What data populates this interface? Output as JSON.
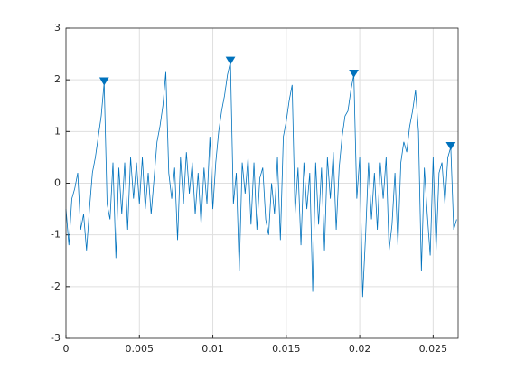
{
  "chart_data": {
    "type": "line",
    "x": [
      0,
      0.0002,
      0.0004,
      0.0006,
      0.0008,
      0.001,
      0.0012,
      0.0014,
      0.0016,
      0.0018,
      0.002,
      0.0022,
      0.0024,
      0.0026,
      0.0028,
      0.003,
      0.0032,
      0.0034,
      0.0036,
      0.0038,
      0.004,
      0.0042,
      0.0044,
      0.0046,
      0.0048,
      0.005,
      0.0052,
      0.0054,
      0.0056,
      0.0058,
      0.006,
      0.0062,
      0.0064,
      0.0066,
      0.0068,
      0.007,
      0.0072,
      0.0074,
      0.0076,
      0.0078,
      0.008,
      0.0082,
      0.0084,
      0.0086,
      0.0088,
      0.009,
      0.0092,
      0.0094,
      0.0096,
      0.0098,
      0.01,
      0.0102,
      0.0104,
      0.0106,
      0.0108,
      0.011,
      0.0112,
      0.0114,
      0.0116,
      0.0118,
      0.012,
      0.0122,
      0.0124,
      0.0126,
      0.0128,
      0.013,
      0.0132,
      0.0134,
      0.0136,
      0.0138,
      0.014,
      0.0142,
      0.0144,
      0.0146,
      0.0148,
      0.015,
      0.0152,
      0.0154,
      0.0156,
      0.0158,
      0.016,
      0.0162,
      0.0164,
      0.0166,
      0.0168,
      0.017,
      0.0172,
      0.0174,
      0.0176,
      0.0178,
      0.018,
      0.0182,
      0.0184,
      0.0186,
      0.0188,
      0.019,
      0.0192,
      0.0194,
      0.0196,
      0.0198,
      0.02,
      0.0202,
      0.0204,
      0.0206,
      0.0208,
      0.021,
      0.0212,
      0.0214,
      0.0216,
      0.0218,
      0.022,
      0.0222,
      0.0224,
      0.0226,
      0.0228,
      0.023,
      0.0232,
      0.0234,
      0.0236,
      0.0238,
      0.024,
      0.0242,
      0.0244,
      0.0246,
      0.0248,
      0.025,
      0.0252,
      0.0254,
      0.0256,
      0.0258,
      0.026,
      0.0262,
      0.0264,
      0.0266
    ],
    "series": [
      {
        "color": "#0072bd",
        "values": [
          -0.5,
          -1.2,
          -0.3,
          -0.1,
          0.2,
          -0.9,
          -0.6,
          -1.3,
          -0.5,
          0.2,
          0.5,
          0.9,
          1.3,
          1.95,
          -0.4,
          -0.7,
          0.4,
          -1.45,
          0.3,
          -0.6,
          0.4,
          -0.9,
          0.5,
          -0.3,
          0.4,
          -0.4,
          0.5,
          -0.5,
          0.2,
          -0.6,
          0.1,
          0.8,
          1.1,
          1.5,
          2.15,
          0.2,
          -0.3,
          0.3,
          -1.1,
          0.5,
          -0.4,
          0.6,
          -0.2,
          0.4,
          -0.6,
          0.2,
          -0.8,
          0.3,
          -0.4,
          0.9,
          -0.5,
          0.4,
          1.0,
          1.4,
          1.7,
          2.1,
          2.35,
          -0.4,
          0.2,
          -1.7,
          0.4,
          -0.2,
          0.5,
          -0.8,
          0.4,
          -0.9,
          0.1,
          0.3,
          -0.7,
          -1.0,
          0.0,
          -0.6,
          0.5,
          -1.1,
          0.9,
          1.2,
          1.6,
          1.9,
          -0.6,
          0.3,
          -1.2,
          0.4,
          -0.5,
          0.2,
          -2.1,
          0.4,
          -0.8,
          0.3,
          -1.3,
          0.5,
          -0.3,
          0.6,
          -0.9,
          0.3,
          0.9,
          1.3,
          1.4,
          1.8,
          2.1,
          -0.3,
          0.5,
          -2.2,
          -1.0,
          0.4,
          -0.7,
          0.2,
          -0.9,
          0.4,
          -0.3,
          0.5,
          -1.3,
          -0.8,
          0.2,
          -1.2,
          0.4,
          0.8,
          0.6,
          1.1,
          1.4,
          1.8,
          1.0,
          -1.7,
          0.3,
          -0.6,
          -1.4,
          0.5,
          -1.3,
          0.2,
          0.4,
          -0.4,
          0.5,
          0.7,
          -0.9,
          -0.7
        ]
      }
    ],
    "peaks": {
      "color": "#0072bd",
      "x": [
        0.0026,
        0.0112,
        0.0196,
        0.0262
      ],
      "values": [
        1.95,
        2.35,
        2.1,
        0.7
      ]
    },
    "xlim": [
      0,
      0.0267
    ],
    "ylim": [
      -3,
      3
    ],
    "xticks": [
      0,
      0.005,
      0.01,
      0.015,
      0.02,
      0.025
    ],
    "yticks": [
      -3,
      -2,
      -1,
      0,
      1,
      2,
      3
    ],
    "grid": true
  }
}
